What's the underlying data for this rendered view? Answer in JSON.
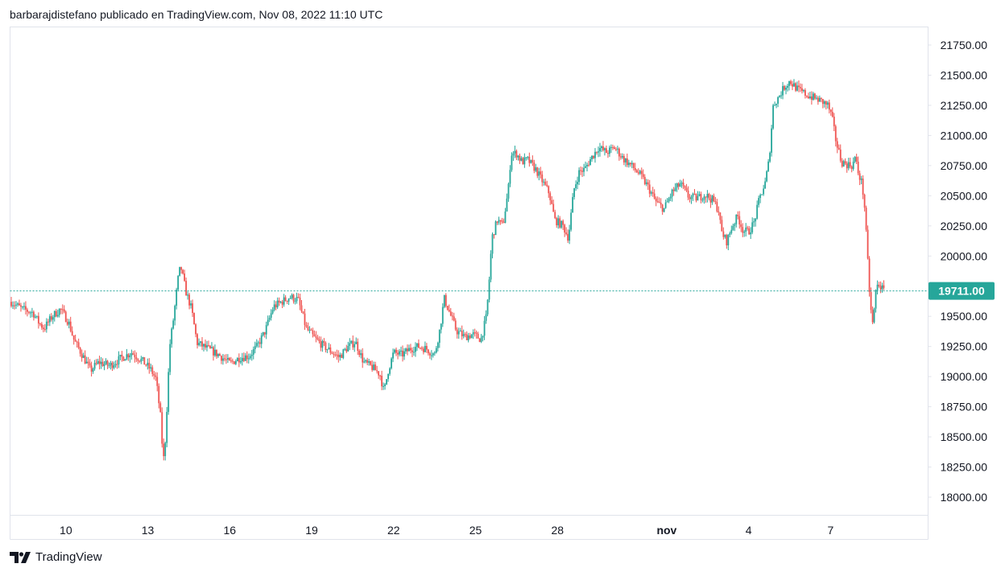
{
  "header": {
    "text": "barbarajdistefano publicado en TradingView.com, Nov 08, 2022 11:10 UTC"
  },
  "footer": {
    "brand": "TradingView"
  },
  "colors": {
    "up": "#26a69a",
    "down": "#ef5350",
    "grid_border": "#e0e3eb",
    "price_line": "#26a69a",
    "text": "#131722"
  },
  "chart_data": {
    "type": "candlestick",
    "symbol_price_label": "19711.00",
    "last_price": 19711,
    "ylim": [
      17850,
      21900
    ],
    "y_ticks": [
      {
        "value": 21750,
        "label": "21750.00"
      },
      {
        "value": 21500,
        "label": "21500.00"
      },
      {
        "value": 21250,
        "label": "21250.00"
      },
      {
        "value": 21000,
        "label": "21000.00"
      },
      {
        "value": 20750,
        "label": "20750.00"
      },
      {
        "value": 20500,
        "label": "20500.00"
      },
      {
        "value": 20250,
        "label": "20250.00"
      },
      {
        "value": 20000,
        "label": "20000.00"
      },
      {
        "value": 19500,
        "label": "19500.00"
      },
      {
        "value": 19250,
        "label": "19250.00"
      },
      {
        "value": 19000,
        "label": "19000.00"
      },
      {
        "value": 18750,
        "label": "18750.00"
      },
      {
        "value": 18500,
        "label": "18500.00"
      },
      {
        "value": 18250,
        "label": "18250.00"
      },
      {
        "value": 18000,
        "label": "18000.00"
      }
    ],
    "x_ticks": [
      {
        "day": 10,
        "label": "10",
        "bold": false
      },
      {
        "day": 13,
        "label": "13",
        "bold": false
      },
      {
        "day": 16,
        "label": "16",
        "bold": false
      },
      {
        "day": 19,
        "label": "19",
        "bold": false
      },
      {
        "day": 22,
        "label": "22",
        "bold": false
      },
      {
        "day": 25,
        "label": "25",
        "bold": false
      },
      {
        "day": 28,
        "label": "28",
        "bold": false
      },
      {
        "day": 32,
        "label": "nov",
        "bold": true
      },
      {
        "day": 35,
        "label": "4",
        "bold": false
      },
      {
        "day": 38,
        "label": "7",
        "bold": false
      }
    ],
    "x_range": [
      8.0,
      40.2
    ],
    "price_path": [
      [
        8.0,
        19620
      ],
      [
        8.4,
        19560
      ],
      [
        8.8,
        19530
      ],
      [
        9.0,
        19450
      ],
      [
        9.2,
        19400
      ],
      [
        9.5,
        19500
      ],
      [
        9.8,
        19560
      ],
      [
        10.1,
        19450
      ],
      [
        10.3,
        19300
      ],
      [
        10.6,
        19180
      ],
      [
        10.9,
        19050
      ],
      [
        11.2,
        19120
      ],
      [
        11.6,
        19090
      ],
      [
        12.0,
        19150
      ],
      [
        12.4,
        19200
      ],
      [
        12.8,
        19130
      ],
      [
        13.1,
        19060
      ],
      [
        13.3,
        18980
      ],
      [
        13.5,
        18600
      ],
      [
        13.55,
        18250
      ],
      [
        13.65,
        18500
      ],
      [
        13.8,
        19250
      ],
      [
        13.95,
        19500
      ],
      [
        14.1,
        19800
      ],
      [
        14.2,
        19920
      ],
      [
        14.4,
        19700
      ],
      [
        14.6,
        19560
      ],
      [
        14.8,
        19280
      ],
      [
        15.2,
        19230
      ],
      [
        15.6,
        19180
      ],
      [
        16.0,
        19110
      ],
      [
        16.4,
        19160
      ],
      [
        16.7,
        19170
      ],
      [
        17.0,
        19250
      ],
      [
        17.3,
        19380
      ],
      [
        17.6,
        19580
      ],
      [
        17.9,
        19620
      ],
      [
        18.2,
        19660
      ],
      [
        18.5,
        19640
      ],
      [
        18.8,
        19400
      ],
      [
        19.1,
        19320
      ],
      [
        19.4,
        19260
      ],
      [
        19.7,
        19210
      ],
      [
        20.0,
        19160
      ],
      [
        20.3,
        19240
      ],
      [
        20.6,
        19290
      ],
      [
        20.9,
        19120
      ],
      [
        21.2,
        19080
      ],
      [
        21.5,
        19020
      ],
      [
        21.65,
        18870
      ],
      [
        21.8,
        19050
      ],
      [
        22.0,
        19200
      ],
      [
        22.3,
        19180
      ],
      [
        22.6,
        19230
      ],
      [
        22.9,
        19250
      ],
      [
        23.2,
        19230
      ],
      [
        23.5,
        19180
      ],
      [
        23.7,
        19400
      ],
      [
        23.85,
        19650
      ],
      [
        24.0,
        19560
      ],
      [
        24.3,
        19380
      ],
      [
        24.6,
        19330
      ],
      [
        24.9,
        19350
      ],
      [
        25.2,
        19310
      ],
      [
        25.4,
        19500
      ],
      [
        25.5,
        19800
      ],
      [
        25.6,
        20150
      ],
      [
        25.8,
        20300
      ],
      [
        26.0,
        20250
      ],
      [
        26.2,
        20550
      ],
      [
        26.3,
        20850
      ],
      [
        26.5,
        20850
      ],
      [
        26.7,
        20780
      ],
      [
        26.9,
        20800
      ],
      [
        27.2,
        20720
      ],
      [
        27.5,
        20600
      ],
      [
        27.7,
        20520
      ],
      [
        27.9,
        20300
      ],
      [
        28.2,
        20250
      ],
      [
        28.4,
        20150
      ],
      [
        28.6,
        20550
      ],
      [
        28.8,
        20700
      ],
      [
        29.0,
        20720
      ],
      [
        29.2,
        20800
      ],
      [
        29.5,
        20900
      ],
      [
        29.8,
        20860
      ],
      [
        30.1,
        20900
      ],
      [
        30.4,
        20810
      ],
      [
        30.7,
        20750
      ],
      [
        31.0,
        20680
      ],
      [
        31.3,
        20580
      ],
      [
        31.6,
        20450
      ],
      [
        31.9,
        20390
      ],
      [
        32.2,
        20530
      ],
      [
        32.5,
        20600
      ],
      [
        32.8,
        20490
      ],
      [
        33.1,
        20480
      ],
      [
        33.4,
        20510
      ],
      [
        33.7,
        20460
      ],
      [
        33.9,
        20380
      ],
      [
        34.0,
        20200
      ],
      [
        34.2,
        20120
      ],
      [
        34.4,
        20250
      ],
      [
        34.6,
        20330
      ],
      [
        34.8,
        20210
      ],
      [
        35.0,
        20200
      ],
      [
        35.2,
        20280
      ],
      [
        35.4,
        20480
      ],
      [
        35.6,
        20600
      ],
      [
        35.75,
        20800
      ],
      [
        35.9,
        21250
      ],
      [
        36.1,
        21320
      ],
      [
        36.3,
        21400
      ],
      [
        36.5,
        21450
      ],
      [
        36.8,
        21380
      ],
      [
        37.1,
        21340
      ],
      [
        37.4,
        21310
      ],
      [
        37.7,
        21280
      ],
      [
        37.9,
        21250
      ],
      [
        38.05,
        21150
      ],
      [
        38.2,
        20950
      ],
      [
        38.4,
        20780
      ],
      [
        38.6,
        20760
      ],
      [
        38.8,
        20750
      ],
      [
        38.9,
        20820
      ],
      [
        39.0,
        20700
      ],
      [
        39.15,
        20600
      ],
      [
        39.25,
        20400
      ],
      [
        39.35,
        20000
      ],
      [
        39.45,
        19600
      ],
      [
        39.55,
        19420
      ],
      [
        39.65,
        19700
      ],
      [
        39.75,
        19780
      ],
      [
        39.85,
        19740
      ],
      [
        39.95,
        19711
      ]
    ]
  }
}
